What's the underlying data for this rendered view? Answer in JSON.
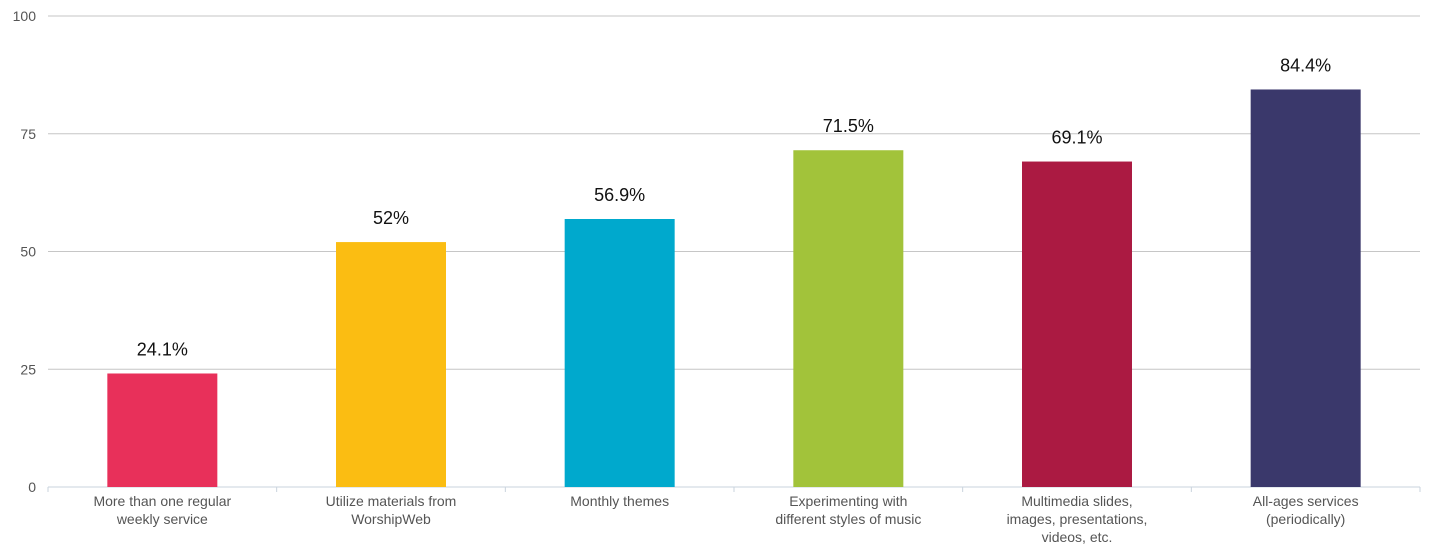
{
  "chart_data": {
    "type": "bar",
    "categories": [
      [
        "More than one regular",
        "weekly service"
      ],
      [
        "Utilize materials from",
        "WorshipWeb"
      ],
      [
        "Monthly themes"
      ],
      [
        "Experimenting with",
        "different styles of music"
      ],
      [
        "Multimedia slides,",
        "images, presentations,",
        "videos, etc."
      ],
      [
        "All-ages services",
        "(periodically)"
      ]
    ],
    "values": [
      24.1,
      52,
      56.9,
      71.5,
      69.1,
      84.4
    ],
    "data_labels": [
      "24.1%",
      "52%",
      "56.9%",
      "71.5%",
      "69.1%",
      "84.4%"
    ],
    "colors": [
      "#e8305a",
      "#fbbd12",
      "#00a9cd",
      "#a2c33a",
      "#ab1a42",
      "#3a386b"
    ],
    "ylim": [
      0,
      100
    ],
    "yticks": [
      0,
      25,
      50,
      75,
      100
    ],
    "grid": true,
    "legend": "none",
    "title": "",
    "xlabel": "",
    "ylabel": ""
  }
}
